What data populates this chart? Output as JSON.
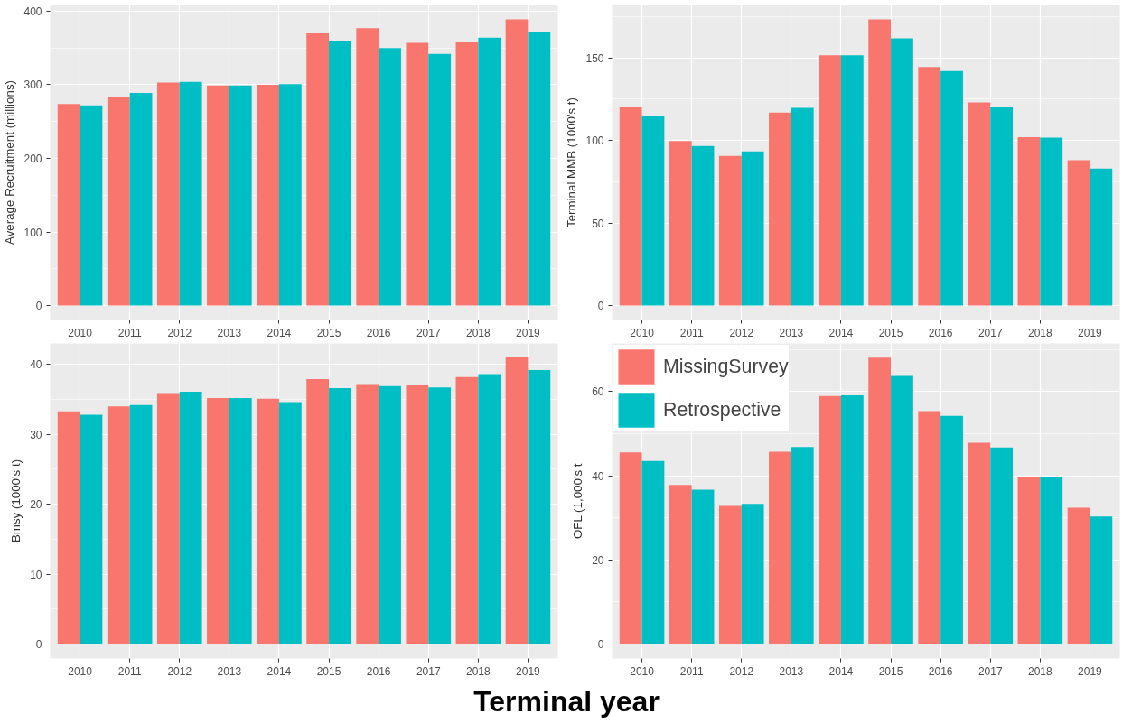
{
  "chart_data": [
    {
      "type": "bar",
      "ylabel": "Average Recruitment (millions)",
      "categories": [
        "2010",
        "2011",
        "2012",
        "2013",
        "2014",
        "2015",
        "2016",
        "2017",
        "2018",
        "2019"
      ],
      "ylim": [
        -19.5,
        408.5
      ],
      "yticks": [
        0,
        100,
        200,
        300,
        400
      ],
      "grid": true,
      "series": [
        {
          "color": "#f8766d",
          "values": [
            274,
            283,
            303,
            299,
            300,
            370,
            377,
            357,
            358,
            389
          ]
        },
        {
          "color": "#00bfc4",
          "values": [
            272,
            289,
            304,
            299,
            301,
            360,
            350,
            342,
            364,
            372
          ]
        }
      ]
    },
    {
      "type": "bar",
      "ylabel": "Terminal MMB (1000's t)",
      "categories": [
        "2010",
        "2011",
        "2012",
        "2013",
        "2014",
        "2015",
        "2016",
        "2017",
        "2018",
        "2019"
      ],
      "ylim": [
        -8.7,
        182
      ],
      "yticks": [
        0,
        50,
        100,
        150
      ],
      "grid": true,
      "series": [
        {
          "color": "#f8766d",
          "values": [
            120,
            99.6,
            90.6,
            116.9,
            151.5,
            173.3,
            144.4,
            123,
            102,
            88
          ]
        },
        {
          "color": "#00bfc4",
          "values": [
            114.7,
            96.6,
            93.4,
            119.7,
            151.5,
            161.8,
            142,
            120.3,
            101.7,
            82.9
          ]
        }
      ]
    },
    {
      "type": "bar",
      "ylabel": "Bmsy (1000's t)",
      "xlabel": "Terminal year",
      "categories": [
        "2010",
        "2011",
        "2012",
        "2013",
        "2014",
        "2015",
        "2016",
        "2017",
        "2018",
        "2019"
      ],
      "ylim": [
        -2.05,
        43
      ],
      "yticks": [
        0,
        10,
        20,
        30,
        40
      ],
      "grid": true,
      "series": [
        {
          "color": "#f8766d",
          "values": [
            33.3,
            34.0,
            35.9,
            35.2,
            35.1,
            37.9,
            37.2,
            37.1,
            38.2,
            41.0
          ]
        },
        {
          "color": "#00bfc4",
          "values": [
            32.8,
            34.2,
            36.1,
            35.2,
            34.6,
            36.6,
            36.9,
            36.7,
            38.6,
            39.2
          ]
        }
      ]
    },
    {
      "type": "bar",
      "ylabel": "OFL (1,000's t",
      "categories": [
        "2010",
        "2011",
        "2012",
        "2013",
        "2014",
        "2015",
        "2016",
        "2017",
        "2018",
        "2019"
      ],
      "ylim": [
        -3.4,
        71.4
      ],
      "yticks": [
        0,
        20,
        40,
        60
      ],
      "grid": true,
      "legend": "top left",
      "series": [
        {
          "name": "MissingSurvey",
          "color": "#f8766d",
          "values": [
            45.5,
            37.8,
            32.8,
            45.7,
            58.9,
            68.0,
            55.3,
            47.8,
            39.8,
            32.4
          ]
        },
        {
          "name": "Retrospective",
          "color": "#00bfc4",
          "values": [
            43.5,
            36.7,
            33.3,
            46.8,
            59.1,
            63.7,
            54.2,
            46.7,
            39.8,
            30.3
          ]
        }
      ]
    }
  ]
}
